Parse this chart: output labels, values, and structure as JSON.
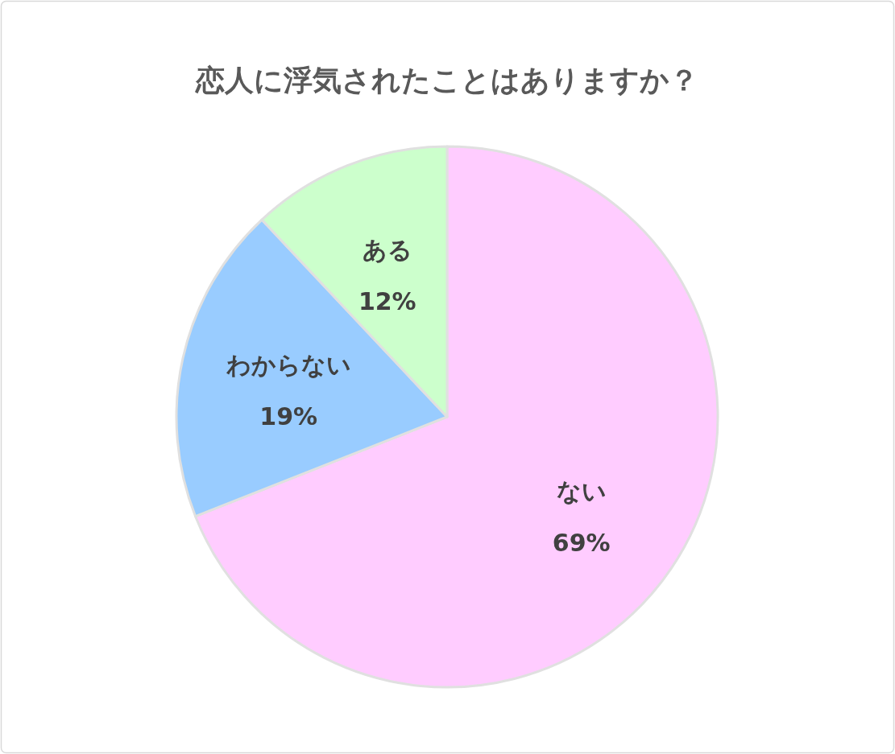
{
  "chart_data": {
    "type": "pie",
    "title": "恋人に浮気されたことはありますか？",
    "categories": [
      "ない",
      "わからない",
      "ある"
    ],
    "values": [
      69,
      19,
      12
    ],
    "colors": [
      "#ffccff",
      "#99ccff",
      "#ccffcc"
    ],
    "value_labels": [
      "69%",
      "19%",
      "12%"
    ],
    "legend": false
  }
}
